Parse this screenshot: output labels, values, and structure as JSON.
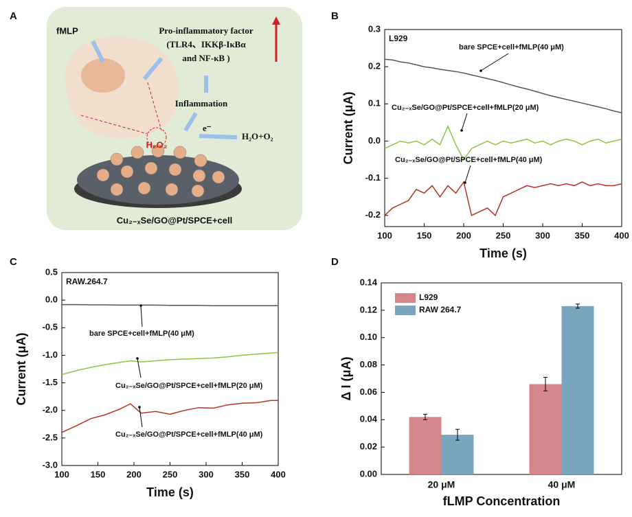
{
  "diagram": {
    "panel_label": "A",
    "fmlp": "fMLP",
    "factor_title": "Pro-inflammatory factor",
    "factor_line1": "(TLR4、IKKβ-IκBα",
    "factor_line2": "and NF-κB )",
    "inflammation": "Inflammation",
    "electron": "e⁻",
    "product": "H₂O+O₂",
    "h2o2": "H₂O₂",
    "caption": "Cu₂₋ₓSe/GO@Pt/SPCE+cell"
  },
  "chart_data": [
    {
      "type": "line",
      "panel_label": "B",
      "subtitle": "L929",
      "xlabel": "Time (s)",
      "ylabel": "Current (μA)",
      "x": [
        100,
        110,
        120,
        130,
        140,
        150,
        160,
        170,
        180,
        190,
        200,
        210,
        220,
        230,
        240,
        250,
        260,
        270,
        280,
        290,
        300,
        310,
        320,
        330,
        340,
        350,
        360,
        370,
        380,
        390,
        400
      ],
      "series": [
        {
          "name": "bare SPCE+cell+fMLP(40 μM)",
          "color": "#555555",
          "values": [
            0.22,
            0.218,
            0.213,
            0.21,
            0.205,
            0.2,
            0.197,
            0.193,
            0.19,
            0.187,
            0.183,
            0.178,
            0.173,
            0.168,
            0.163,
            0.157,
            0.151,
            0.145,
            0.14,
            0.134,
            0.128,
            0.122,
            0.117,
            0.112,
            0.107,
            0.102,
            0.097,
            0.092,
            0.087,
            0.081,
            0.076
          ]
        },
        {
          "name": "Cu₂₋ₓSe/GO@Pt/SPCE+cell+fMLP(20 μM)",
          "color": "#8cc63f",
          "values": [
            -0.02,
            -0.01,
            0.0,
            -0.005,
            0.0,
            -0.01,
            0.005,
            -0.01,
            0.04,
            -0.01,
            -0.05,
            -0.02,
            -0.01,
            0.0,
            -0.01,
            0.0,
            -0.005,
            0.0,
            0.005,
            -0.005,
            0.0,
            -0.01,
            0.0,
            0.005,
            0.0,
            -0.01,
            0.0,
            0.005,
            -0.005,
            0.0,
            0.005
          ]
        },
        {
          "name": "Cu₂₋ₓSe/GO@Pt/SPCE+cell+fMLP(40 μM)",
          "color": "#b5321f",
          "values": [
            -0.2,
            -0.18,
            -0.17,
            -0.16,
            -0.13,
            -0.14,
            -0.12,
            -0.15,
            -0.12,
            -0.14,
            -0.11,
            -0.2,
            -0.19,
            -0.18,
            -0.2,
            -0.15,
            -0.14,
            -0.13,
            -0.12,
            -0.125,
            -0.12,
            -0.115,
            -0.12,
            -0.115,
            -0.12,
            -0.11,
            -0.12,
            -0.115,
            -0.12,
            -0.12,
            -0.115
          ]
        }
      ],
      "xlim": [
        100,
        400
      ],
      "xticks": [
        100,
        150,
        200,
        250,
        300,
        350,
        400
      ],
      "ylim": [
        -0.23,
        0.3
      ],
      "yticks": [
        -0.2,
        -0.1,
        {
          "value": 0,
          "label": "0.0"
        },
        0.1,
        0.2,
        0.3
      ]
    },
    {
      "type": "line",
      "panel_label": "C",
      "subtitle": "RAW.264.7",
      "xlabel": "Time (s)",
      "ylabel": "Current (μA)",
      "x": [
        100,
        120,
        140,
        160,
        180,
        195,
        210,
        230,
        250,
        270,
        290,
        310,
        330,
        350,
        370,
        390,
        400
      ],
      "series": [
        {
          "name": "bare SPCE+cell+fMLP(40 μM)",
          "color": "#555555",
          "values": [
            -0.08,
            -0.08,
            -0.085,
            -0.085,
            -0.09,
            -0.09,
            -0.09,
            -0.09,
            -0.095,
            -0.095,
            -0.095,
            -0.1,
            -0.1,
            -0.1,
            -0.1,
            -0.1,
            -0.1
          ]
        },
        {
          "name": "Cu₂₋ₓSe/GO@Pt/SPCE+cell+fMLP(20 μM)",
          "color": "#8cc63f",
          "values": [
            -1.35,
            -1.28,
            -1.22,
            -1.17,
            -1.13,
            -1.1,
            -1.12,
            -1.1,
            -1.08,
            -1.07,
            -1.06,
            -1.05,
            -1.03,
            -1.0,
            -0.98,
            -0.96,
            -0.95
          ]
        },
        {
          "name": "Cu₂₋ₓSe/GO@Pt/SPCE+cell+fMLP(40 μM)",
          "color": "#b5321f",
          "values": [
            -2.4,
            -2.28,
            -2.15,
            -2.08,
            -1.98,
            -1.88,
            -2.05,
            -2.02,
            -2.07,
            -2.0,
            -1.95,
            -1.96,
            -1.9,
            -1.87,
            -1.86,
            -1.82,
            -1.82
          ]
        }
      ],
      "xlim": [
        100,
        400
      ],
      "xticks": [
        100,
        150,
        200,
        250,
        300,
        350,
        400
      ],
      "ylim": [
        -3,
        0.5
      ],
      "yticks": [
        {
          "value": -3,
          "label": "-3.0"
        },
        -2.5,
        {
          "value": -2,
          "label": "-2.0"
        },
        -1.5,
        {
          "value": -1,
          "label": "-1.0"
        },
        -0.5,
        {
          "value": 0,
          "label": "0.0"
        },
        0.5
      ]
    },
    {
      "type": "bar",
      "panel_label": "D",
      "xlabel": "fLMP Concentration",
      "ylabel": "Δ I (μA)",
      "categories": [
        "20 μM",
        "40 μM"
      ],
      "series": [
        {
          "name": "L929",
          "color": "#d4868a",
          "values": [
            0.042,
            0.066
          ],
          "errors": [
            0.002,
            0.005
          ]
        },
        {
          "name": "RAW 264.7",
          "color": "#7aa5bf",
          "values": [
            0.029,
            0.123
          ],
          "errors": [
            0.004,
            0.0015
          ]
        }
      ],
      "ylim": [
        0,
        0.14
      ],
      "yticks": [
        {
          "value": 0,
          "label": "0.00"
        },
        {
          "value": 0.02,
          "label": "0.02"
        },
        {
          "value": 0.04,
          "label": "0.04"
        },
        {
          "value": 0.06,
          "label": "0.06"
        },
        {
          "value": 0.08,
          "label": "0.08"
        },
        {
          "value": 0.1,
          "label": "0.10"
        },
        {
          "value": 0.12,
          "label": "0.12"
        },
        {
          "value": 0.14,
          "label": "0.14"
        }
      ],
      "legend": "upper left"
    }
  ]
}
